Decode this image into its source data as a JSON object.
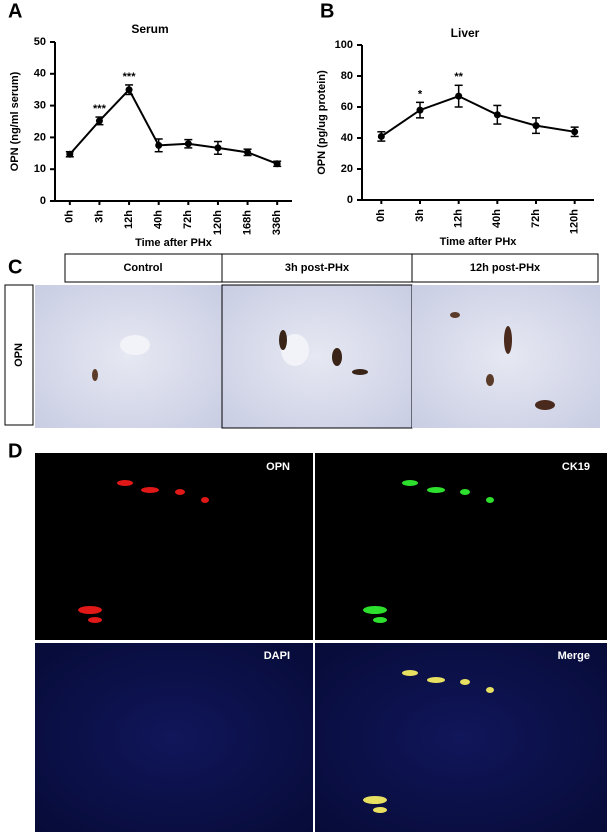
{
  "chart_data": [
    {
      "type": "line",
      "panel_label": "A",
      "title": "Serum",
      "x_label": "Time after PHx",
      "y_label": "OPN (ng/ml serum)",
      "categories": [
        "0h",
        "3h",
        "12h",
        "40h",
        "72h",
        "120h",
        "168h",
        "336h"
      ],
      "values": [
        14.7,
        25.2,
        35,
        17.5,
        18,
        16.7,
        15.3,
        11.7
      ],
      "errors": [
        0.8,
        1.2,
        1.5,
        2,
        1.3,
        2,
        1,
        0.8
      ],
      "annotations": [
        null,
        "***",
        "***",
        null,
        null,
        null,
        null,
        null
      ],
      "color": "#000000",
      "ylim": [
        0,
        50
      ],
      "yticks": [
        0,
        10,
        20,
        30,
        40,
        50
      ]
    },
    {
      "type": "line",
      "panel_label": "B",
      "title": "Liver",
      "x_label": "Time after PHx",
      "y_label": "OPN (pg/ug protein)",
      "categories": [
        "0h",
        "3h",
        "12h",
        "40h",
        "72h",
        "120h"
      ],
      "values": [
        41,
        58,
        67,
        55,
        48,
        44
      ],
      "errors": [
        3,
        5,
        7,
        6,
        5,
        3
      ],
      "annotations": [
        null,
        "*",
        "**",
        null,
        null,
        null
      ],
      "color": "#000000",
      "ylim": [
        0,
        100
      ],
      "yticks": [
        0,
        20,
        40,
        60,
        80,
        100
      ]
    }
  ],
  "panel_c": {
    "panel_label": "C",
    "columns": [
      "Control",
      "3h post-PHx",
      "12h post-PHx"
    ],
    "row_label": "OPN"
  },
  "panel_d": {
    "panel_label": "D",
    "images": [
      "OPN",
      "CK19",
      "DAPI",
      "Merge"
    ]
  }
}
